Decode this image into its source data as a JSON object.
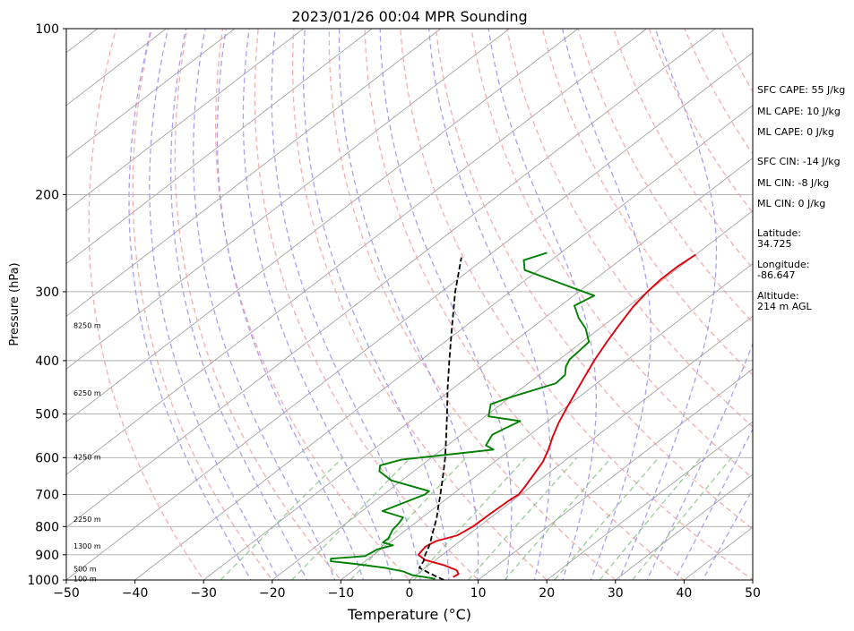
{
  "chart_data": {
    "type": "line",
    "title": "2023/01/26 00:04 MPR Sounding",
    "xlabel": "Temperature (°C)",
    "ylabel": "Pressure (hPa)",
    "xlim": [
      -50,
      50
    ],
    "ylim": [
      1000,
      100
    ],
    "y_scale": "log",
    "x_ticks": [
      "−50",
      "−40",
      "−30",
      "−20",
      "−10",
      "0",
      "10",
      "20",
      "30",
      "40",
      "50"
    ],
    "x_tick_values": [
      -50,
      -40,
      -30,
      -20,
      -10,
      0,
      10,
      20,
      30,
      40,
      50
    ],
    "y_ticks": [
      "100",
      "200",
      "300",
      "400",
      "500",
      "600",
      "700",
      "800",
      "900",
      "1000"
    ],
    "y_tick_values": [
      100,
      200,
      300,
      400,
      500,
      600,
      700,
      800,
      900,
      1000
    ],
    "grid": true,
    "series": [
      {
        "color": "#e0000c",
        "pressure": [
          988,
          975,
          960,
          940,
          920,
          900,
          870,
          850,
          830,
          800,
          760,
          720,
          700,
          680,
          650,
          610,
          580,
          550,
          520,
          490,
          460,
          430,
          400,
          370,
          345,
          320,
          300,
          285,
          270,
          257
        ],
        "temperature": [
          5.8,
          6.0,
          5.0,
          2.2,
          -1.5,
          -3.5,
          -4.0,
          -3.5,
          -1.5,
          -0.9,
          -0.8,
          -0.6,
          -0.3,
          -0.8,
          -1.7,
          -3.0,
          -4.5,
          -6.3,
          -8.0,
          -9.6,
          -11.2,
          -12.9,
          -14.7,
          -16.4,
          -17.8,
          -19.2,
          -20.0,
          -20.4,
          -20.4,
          -20.0
        ]
      },
      {
        "color": "#008000",
        "pressure": [
          995,
          980,
          965,
          950,
          935,
          925,
          915,
          905,
          880,
          865,
          855,
          840,
          810,
          790,
          770,
          750,
          700,
          690,
          660,
          648,
          635,
          620,
          605,
          580,
          570,
          545,
          530,
          515,
          505,
          480,
          465,
          440,
          425,
          410,
          398,
          385,
          370,
          350,
          335,
          318,
          305,
          282,
          274,
          263,
          255
        ],
        "temperature": [
          3.5,
          -0.5,
          -2.5,
          -6.0,
          -11.0,
          -15.0,
          -15.5,
          -11.0,
          -10.5,
          -9.0,
          -11.0,
          -11.0,
          -12.0,
          -12.3,
          -12.8,
          -17.0,
          -14.0,
          -14.0,
          -21.5,
          -23.2,
          -25.0,
          -26.0,
          -24.0,
          -12.5,
          -14.4,
          -15.5,
          -14.8,
          -14.0,
          -19.5,
          -21.5,
          -19.8,
          -16.0,
          -16.2,
          -17.7,
          -18.5,
          -18.7,
          -19.0,
          -22.0,
          -25.0,
          -28.0,
          -27.0,
          -38.0,
          -42.0,
          -44.0,
          -42.0
        ]
      },
      {
        "color": "#000000",
        "dashed": true,
        "pressure": [
          1000,
          985,
          970,
          950,
          925,
          900,
          870,
          850,
          830,
          800,
          770,
          740,
          700,
          650,
          600,
          550,
          500,
          450,
          400,
          350,
          300,
          260
        ],
        "temperature": [
          5.0,
          3.2,
          1.4,
          -0.9,
          -1.5,
          -2.5,
          -3.5,
          -4.3,
          -5.2,
          -6.5,
          -7.9,
          -9.5,
          -11.7,
          -14.7,
          -18.0,
          -21.8,
          -26.0,
          -30.7,
          -35.8,
          -41.5,
          -48.0,
          -53.6
        ]
      }
    ],
    "height_labels": [
      {
        "label": "8250 m",
        "pressure": 345
      },
      {
        "label": "6250 m",
        "pressure": 458
      },
      {
        "label": "4250 m",
        "pressure": 598
      },
      {
        "label": "2250 m",
        "pressure": 775
      },
      {
        "label": "1300 m",
        "pressure": 868
      },
      {
        "label": "500 m",
        "pressure": 955
      },
      {
        "label": "100 m",
        "pressure": 995
      }
    ],
    "side_labels": [
      "SFC CAPE: 55 J/kg",
      "ML CAPE: 10 J/kg",
      "ML CAPE: 0 J/kg",
      "SFC CIN: -14 J/kg",
      "ML CIN: -8 J/kg",
      "ML CIN: 0 J/kg",
      "Latitude:",
      "34.725",
      "Longitude:",
      "-86.647",
      "Altitude:",
      "214 m AGL"
    ],
    "colors": {
      "dry_adiabats": "#f4a0a0",
      "moist_adiabats": "#9a90f0",
      "mixing_ratio": "#7fc07f",
      "isotherms": "#999999",
      "isobars": "#aaaaaa"
    }
  }
}
